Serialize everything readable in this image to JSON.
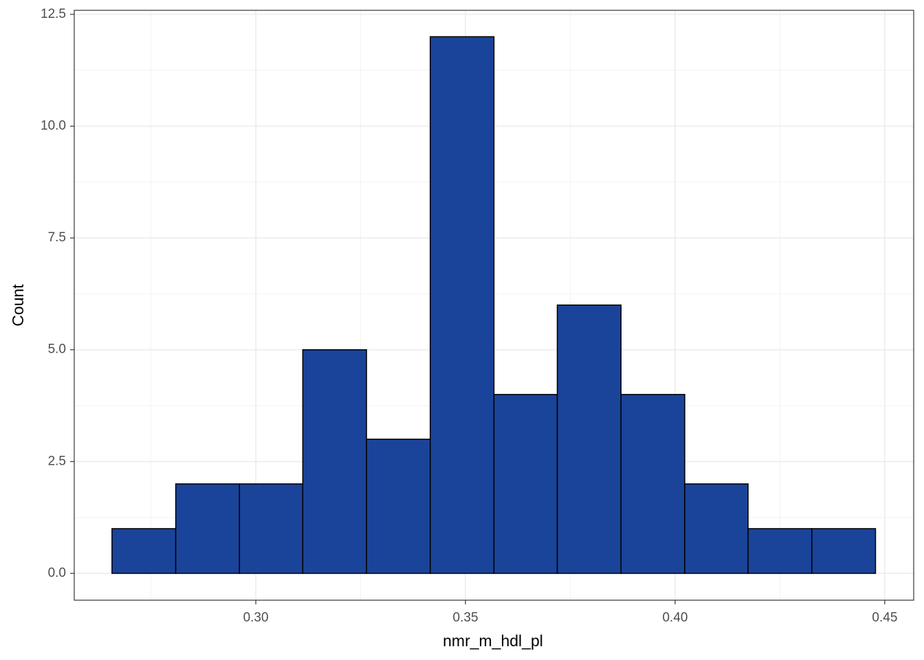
{
  "chart_data": {
    "type": "histogram",
    "x_label": "nmr_m_hdl_pl",
    "y_label": "Count",
    "bins": [
      0.2657,
      0.2809,
      0.2961,
      0.3112,
      0.3264,
      0.3416,
      0.3568,
      0.3719,
      0.3871,
      0.4023,
      0.4174,
      0.4326,
      0.4478
    ],
    "counts": [
      1,
      2,
      2,
      5,
      3,
      12,
      4,
      6,
      4,
      2,
      1,
      1
    ],
    "color": "#1a4499",
    "edge_color": "#000000",
    "xlim": [
      0.2567,
      0.4569
    ],
    "ylim": [
      -0.6,
      12.59
    ],
    "xticks": [
      {
        "value": 0.3,
        "label": "0.30"
      },
      {
        "value": 0.35,
        "label": "0.35"
      },
      {
        "value": 0.4,
        "label": "0.40"
      },
      {
        "value": 0.45,
        "label": "0.45"
      }
    ],
    "yticks": [
      {
        "value": 0,
        "label": "0.0"
      },
      {
        "value": 2.5,
        "label": "2.5"
      },
      {
        "value": 5,
        "label": "5.0"
      },
      {
        "value": 7.5,
        "label": "7.5"
      },
      {
        "value": 10,
        "label": "10.0"
      },
      {
        "value": 12.5,
        "label": "12.5"
      }
    ],
    "grid": true
  }
}
